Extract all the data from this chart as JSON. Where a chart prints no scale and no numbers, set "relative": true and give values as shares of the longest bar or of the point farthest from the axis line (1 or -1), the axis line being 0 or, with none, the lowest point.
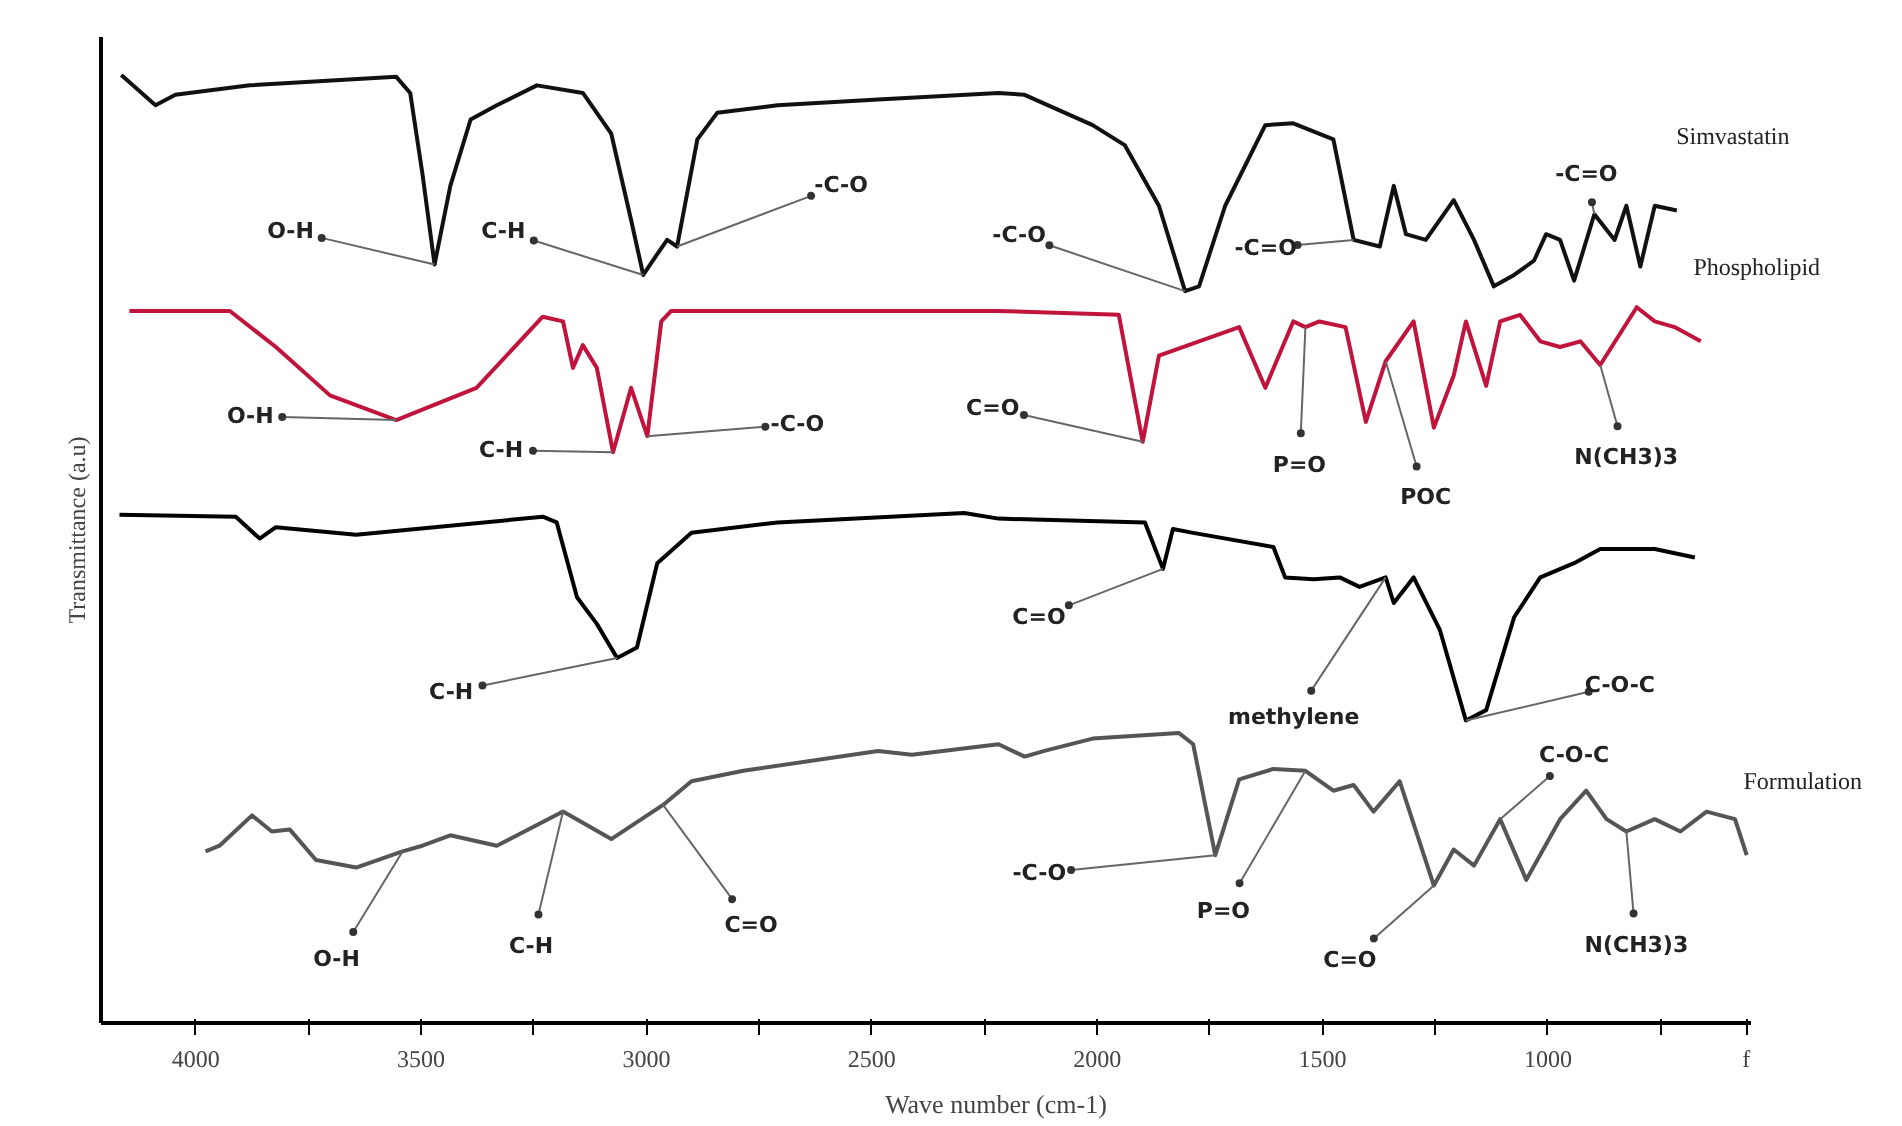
{
  "chart_data": {
    "type": "line",
    "relative": true,
    "xlabel": "Wave number (cm-1)",
    "ylabel": "Transmittance (a.u)",
    "xlim": [
      4210,
      550
    ],
    "xticks": [
      4000,
      {
        "value": 3750,
        "label": null
      },
      3500,
      {
        "value": 3250,
        "label": null
      },
      3000,
      {
        "value": 2750,
        "label": null
      },
      2500,
      {
        "value": 2250,
        "label": null
      },
      2000,
      {
        "value": 1750,
        "label": null
      },
      1500,
      {
        "value": 1250,
        "label": null
      },
      1000,
      {
        "value": 750,
        "label": null
      },
      {
        "value": 560,
        "label": "f"
      }
    ],
    "series": [
      {
        "name": "Simvastatin",
        "color": "#111111",
        "x": [
          4165,
          4089,
          4045,
          3880,
          3555,
          3524,
          3497,
          3470,
          3435,
          3390,
          3332,
          3243,
          3141,
          3078,
          3034,
          3007,
          2976,
          2954,
          2932,
          2887,
          2843,
          2709,
          2486,
          2219,
          2161,
          2010,
          1939,
          1863,
          1805,
          1774,
          1716,
          1627,
          1565,
          1476,
          1431,
          1373,
          1342,
          1315,
          1271,
          1209,
          1164,
          1120,
          1075,
          1031,
          1004,
          973,
          942,
          897,
          852,
          826,
          795,
          763,
          714
        ],
        "values": [
          1.0,
          0.968,
          0.979,
          0.989,
          0.998,
          0.981,
          0.896,
          0.8,
          0.883,
          0.953,
          0.968,
          0.989,
          0.981,
          0.938,
          0.847,
          0.789,
          0.811,
          0.826,
          0.819,
          0.932,
          0.96,
          0.968,
          0.974,
          0.981,
          0.979,
          0.947,
          0.926,
          0.862,
          0.772,
          0.777,
          0.862,
          0.947,
          0.949,
          0.932,
          0.826,
          0.819,
          0.883,
          0.832,
          0.826,
          0.868,
          0.826,
          0.777,
          0.789,
          0.804,
          0.832,
          0.826,
          0.783,
          0.853,
          0.826,
          0.862,
          0.798,
          0.862,
          0.857
        ]
      },
      {
        "name": "Phospholipid",
        "color": "#c0143c",
        "x": [
          4147,
          3924,
          3822,
          3702,
          3555,
          3377,
          3230,
          3185,
          3163,
          3141,
          3110,
          3074,
          3034,
          2998,
          2967,
          2945,
          2219,
          1952,
          1899,
          1863,
          1774,
          1685,
          1627,
          1565,
          1538,
          1507,
          1449,
          1404,
          1360,
          1298,
          1253,
          1209,
          1182,
          1137,
          1106,
          1062,
          1017,
          973,
          928,
          884,
          803,
          763,
          719,
          661
        ],
        "values": [
          0.751,
          0.751,
          0.713,
          0.662,
          0.636,
          0.67,
          0.745,
          0.74,
          0.691,
          0.715,
          0.691,
          0.602,
          0.67,
          0.619,
          0.74,
          0.751,
          0.751,
          0.747,
          0.613,
          0.704,
          0.719,
          0.734,
          0.67,
          0.74,
          0.734,
          0.74,
          0.734,
          0.634,
          0.698,
          0.74,
          0.628,
          0.683,
          0.74,
          0.672,
          0.74,
          0.747,
          0.719,
          0.713,
          0.719,
          0.694,
          0.755,
          0.74,
          0.734,
          0.719
        ]
      },
      {
        "color": "#000000",
        "x": [
          4169,
          3911,
          3858,
          3822,
          3644,
          3230,
          3199,
          3154,
          3110,
          3065,
          3021,
          2976,
          2900,
          2709,
          2295,
          2219,
          1894,
          1854,
          1832,
          1787,
          1609,
          1583,
          1520,
          1462,
          1418,
          1360,
          1342,
          1298,
          1240,
          1182,
          1137,
          1075,
          1017,
          942,
          884,
          763,
          674
        ],
        "values": [
          0.536,
          0.534,
          0.511,
          0.523,
          0.515,
          0.534,
          0.528,
          0.449,
          0.421,
          0.385,
          0.396,
          0.485,
          0.517,
          0.528,
          0.538,
          0.532,
          0.528,
          0.479,
          0.521,
          0.517,
          0.502,
          0.47,
          0.468,
          0.47,
          0.46,
          0.47,
          0.443,
          0.47,
          0.415,
          0.319,
          0.33,
          0.428,
          0.47,
          0.485,
          0.5,
          0.5,
          0.491
        ]
      },
      {
        "name": "Formulation",
        "color": "#555555",
        "x": [
          3978,
          3947,
          3875,
          3831,
          3791,
          3733,
          3644,
          3541,
          3497,
          3435,
          3332,
          3185,
          3078,
          2963,
          2900,
          2785,
          2486,
          2411,
          2219,
          2161,
          2117,
          2010,
          1819,
          1787,
          1738,
          1685,
          1609,
          1538,
          1476,
          1431,
          1387,
          1329,
          1253,
          1209,
          1164,
          1106,
          1048,
          973,
          915,
          870,
          826,
          763,
          706,
          648,
          585,
          559
        ],
        "values": [
          0.181,
          0.187,
          0.219,
          0.202,
          0.204,
          0.172,
          0.164,
          0.181,
          0.187,
          0.198,
          0.187,
          0.223,
          0.194,
          0.23,
          0.255,
          0.266,
          0.287,
          0.283,
          0.294,
          0.281,
          0.287,
          0.3,
          0.306,
          0.294,
          0.177,
          0.257,
          0.268,
          0.266,
          0.245,
          0.251,
          0.223,
          0.255,
          0.145,
          0.183,
          0.166,
          0.215,
          0.151,
          0.215,
          0.245,
          0.215,
          0.202,
          0.215,
          0.202,
          0.223,
          0.215,
          0.177
        ]
      }
    ],
    "annotations": [
      {
        "text": "O-H",
        "x": 3470,
        "y": 0.8
      },
      {
        "text": "C-H",
        "x": 3007,
        "y": 0.789
      },
      {
        "text": "-C-O",
        "x": 2932,
        "y": 0.819
      },
      {
        "text": "-C-O",
        "x": 1805,
        "y": 0.772
      },
      {
        "text": "-C=O",
        "x": 1431,
        "y": 0.826
      },
      {
        "text": "-C=O",
        "x": 897,
        "y": 0.853
      },
      {
        "text": "O-H",
        "x": 3555,
        "y": 0.636
      },
      {
        "text": "C-H",
        "x": 3074,
        "y": 0.602
      },
      {
        "text": "-C-O",
        "x": 2998,
        "y": 0.619
      },
      {
        "text": "C=O",
        "x": 1899,
        "y": 0.613
      },
      {
        "text": "P=O",
        "x": 1538,
        "y": 0.734
      },
      {
        "text": "POC",
        "x": 1360,
        "y": 0.698
      },
      {
        "text": "N(CH3)3",
        "x": 884,
        "y": 0.694
      },
      {
        "text": "C-H",
        "x": 3065,
        "y": 0.385
      },
      {
        "text": "C=O",
        "x": 1854,
        "y": 0.479
      },
      {
        "text": "methylene",
        "x": 1360,
        "y": 0.47
      },
      {
        "text": "C-O-C",
        "x": 1182,
        "y": 0.319
      },
      {
        "text": "O-H",
        "x": 3541,
        "y": 0.181
      },
      {
        "text": "C-H",
        "x": 3185,
        "y": 0.223
      },
      {
        "text": "C=O",
        "x": 2963,
        "y": 0.23
      },
      {
        "text": "-C-O",
        "x": 1738,
        "y": 0.177
      },
      {
        "text": "P=O",
        "x": 1538,
        "y": 0.266
      },
      {
        "text": "C=O",
        "x": 1253,
        "y": 0.145
      },
      {
        "text": "C-O-C",
        "x": 1106,
        "y": 0.215
      },
      {
        "text": "N(CH3)3",
        "x": 826,
        "y": 0.202
      }
    ]
  }
}
